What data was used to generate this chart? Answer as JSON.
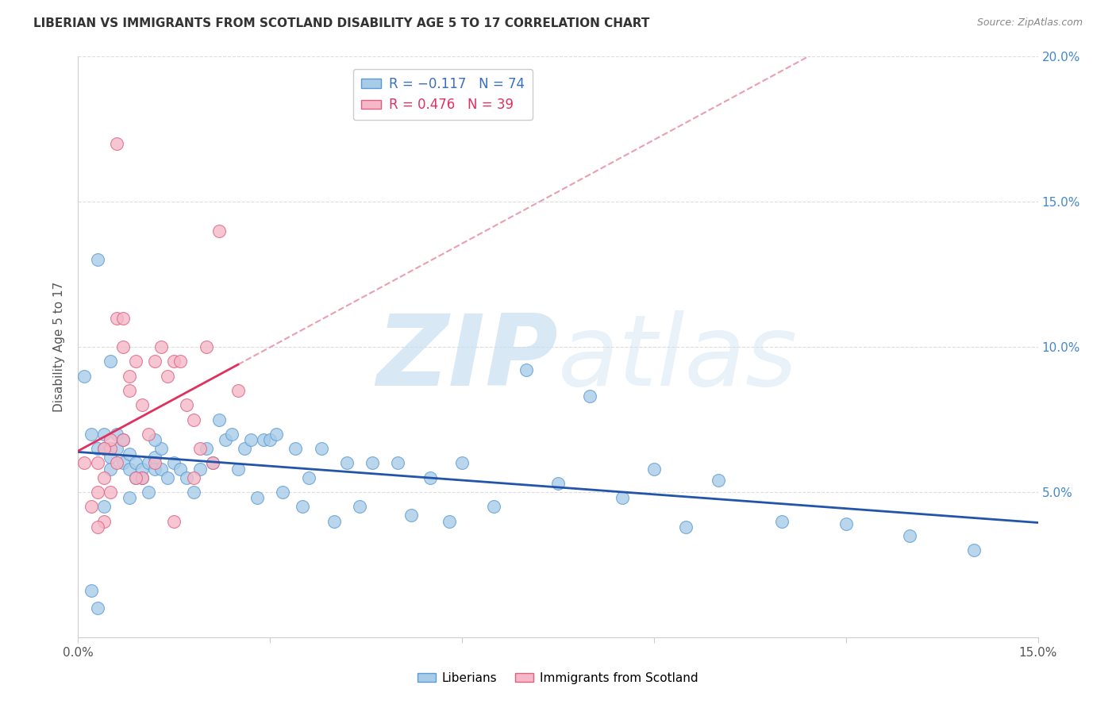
{
  "title": "LIBERIAN VS IMMIGRANTS FROM SCOTLAND DISABILITY AGE 5 TO 17 CORRELATION CHART",
  "source": "Source: ZipAtlas.com",
  "ylabel": "Disability Age 5 to 17",
  "xlim": [
    0.0,
    0.15
  ],
  "ylim": [
    0.0,
    0.2
  ],
  "blue_color": "#a8cce8",
  "blue_edge": "#5b9bd5",
  "pink_color": "#f4b8c8",
  "pink_edge": "#e06080",
  "blue_line_color": "#2255aa",
  "pink_line_color": "#e03060",
  "pink_dash_color": "#e8a0b0",
  "watermark_color": "#c8dff0",
  "grid_color": "#dddddd",
  "right_tick_color": "#4488cc",
  "liberian_x": [
    0.001,
    0.002,
    0.002,
    0.003,
    0.003,
    0.004,
    0.004,
    0.005,
    0.005,
    0.006,
    0.006,
    0.007,
    0.007,
    0.008,
    0.008,
    0.009,
    0.009,
    0.01,
    0.01,
    0.011,
    0.011,
    0.012,
    0.012,
    0.013,
    0.013,
    0.014,
    0.015,
    0.016,
    0.017,
    0.018,
    0.019,
    0.02,
    0.021,
    0.022,
    0.023,
    0.024,
    0.025,
    0.026,
    0.027,
    0.028,
    0.029,
    0.03,
    0.031,
    0.032,
    0.034,
    0.035,
    0.036,
    0.038,
    0.04,
    0.042,
    0.044,
    0.046,
    0.05,
    0.052,
    0.055,
    0.058,
    0.06,
    0.065,
    0.07,
    0.075,
    0.08,
    0.085,
    0.09,
    0.095,
    0.1,
    0.11,
    0.12,
    0.13,
    0.14,
    0.003,
    0.004,
    0.005,
    0.008,
    0.012
  ],
  "liberian_y": [
    0.09,
    0.07,
    0.016,
    0.065,
    0.01,
    0.065,
    0.07,
    0.062,
    0.058,
    0.065,
    0.07,
    0.068,
    0.06,
    0.058,
    0.063,
    0.06,
    0.055,
    0.058,
    0.055,
    0.06,
    0.05,
    0.062,
    0.058,
    0.065,
    0.058,
    0.055,
    0.06,
    0.058,
    0.055,
    0.05,
    0.058,
    0.065,
    0.06,
    0.075,
    0.068,
    0.07,
    0.058,
    0.065,
    0.068,
    0.048,
    0.068,
    0.068,
    0.07,
    0.05,
    0.065,
    0.045,
    0.055,
    0.065,
    0.04,
    0.06,
    0.045,
    0.06,
    0.06,
    0.042,
    0.055,
    0.04,
    0.06,
    0.045,
    0.092,
    0.053,
    0.083,
    0.048,
    0.058,
    0.038,
    0.054,
    0.04,
    0.039,
    0.035,
    0.03,
    0.13,
    0.045,
    0.095,
    0.048,
    0.068
  ],
  "scotland_x": [
    0.001,
    0.002,
    0.003,
    0.003,
    0.004,
    0.004,
    0.005,
    0.005,
    0.006,
    0.006,
    0.007,
    0.007,
    0.008,
    0.008,
    0.009,
    0.01,
    0.01,
    0.011,
    0.012,
    0.013,
    0.014,
    0.015,
    0.016,
    0.017,
    0.018,
    0.019,
    0.02,
    0.021,
    0.022,
    0.025,
    0.003,
    0.005,
    0.007,
    0.009,
    0.012,
    0.015,
    0.018,
    0.004,
    0.006
  ],
  "scotland_y": [
    0.06,
    0.045,
    0.05,
    0.06,
    0.055,
    0.04,
    0.065,
    0.05,
    0.06,
    0.11,
    0.11,
    0.1,
    0.09,
    0.085,
    0.095,
    0.08,
    0.055,
    0.07,
    0.095,
    0.1,
    0.09,
    0.095,
    0.095,
    0.08,
    0.075,
    0.065,
    0.1,
    0.06,
    0.14,
    0.085,
    0.038,
    0.068,
    0.068,
    0.055,
    0.06,
    0.04,
    0.055,
    0.065,
    0.17
  ]
}
